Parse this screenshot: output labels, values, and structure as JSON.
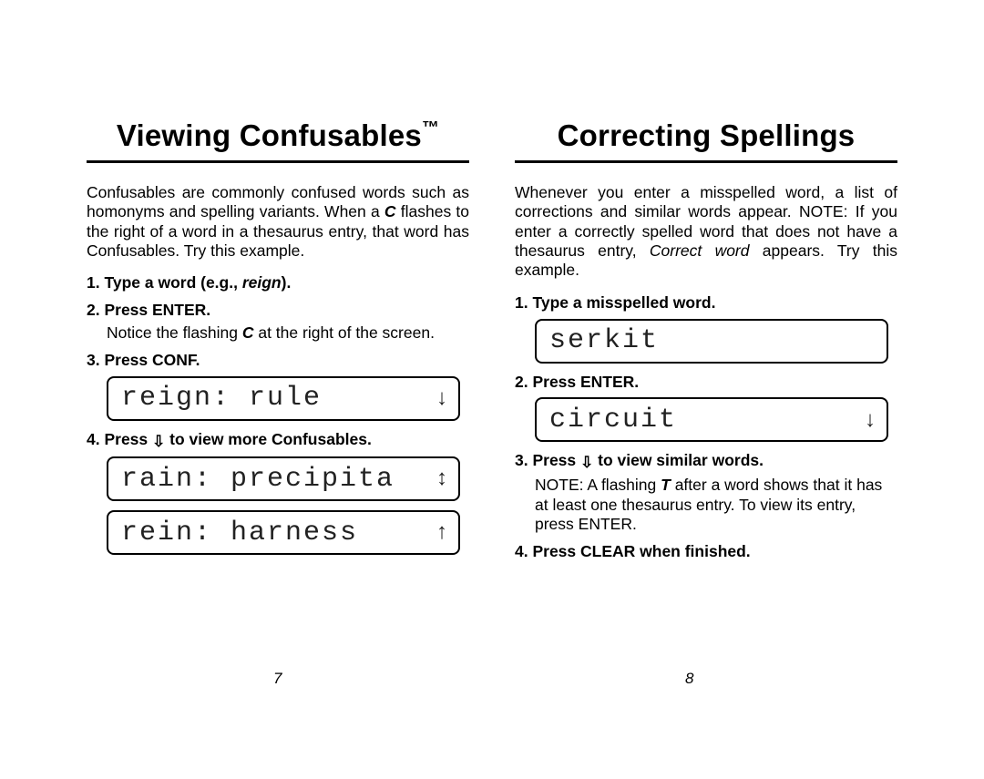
{
  "left": {
    "title_main": "Viewing Confusables",
    "title_tm": "™",
    "intro_html": "Confusables are commonly confused words such as homonyms and spelling variants. When a <span class='bold-ital'>C</span> flashes to the right of a word in a thesaurus entry, that word has Confusables. Try this example.",
    "steps": [
      {
        "label_html": "1. Type  a word (e.g., <span class='ital'>reign</span>)."
      },
      {
        "label_html": "2. Press ENTER.",
        "note_html": "Notice the flashing <span class='bold-ital'>C</span> at the right of the screen."
      },
      {
        "label_html": "3. Press CONF.",
        "lcd": {
          "text": "reign: rule",
          "arrows": "down"
        }
      },
      {
        "label_html": "4. Press <span class='down-key'>⇩</span> to view more Confusables.",
        "lcd2": [
          {
            "text": "rain: precipita",
            "arrows": "updown"
          },
          {
            "text": "rein: harness",
            "arrows": "up"
          }
        ]
      }
    ],
    "page_number": "7"
  },
  "right": {
    "title_main": "Correcting Spellings",
    "intro_html": "Whenever you enter a misspelled word, a list of corrections and similar words appear. NOTE: If you enter a correctly spelled word that does not have a thesaurus entry, <span class='ital'>Correct word</span> appears. Try this example.",
    "steps": [
      {
        "label_html": "1. Type a misspelled word.",
        "lcd": {
          "text": "serkit",
          "arrows": "none"
        }
      },
      {
        "label_html": "2. Press ENTER.",
        "lcd": {
          "text": "circuit",
          "arrows": "down"
        }
      },
      {
        "label_html": "3. Press <span class='down-key'>⇩</span> to view similar words.",
        "note_html": "NOTE: A flashing <span class='bold-ital'>T</span> after a word shows that it has at least one thesaurus entry. To view its entry, press ENTER."
      },
      {
        "label_html": "4. Press CLEAR when finished."
      }
    ],
    "page_number": "8"
  },
  "arrows": {
    "down_glyph": "↓",
    "up_glyph": "↑",
    "updown_glyph": "↕"
  }
}
